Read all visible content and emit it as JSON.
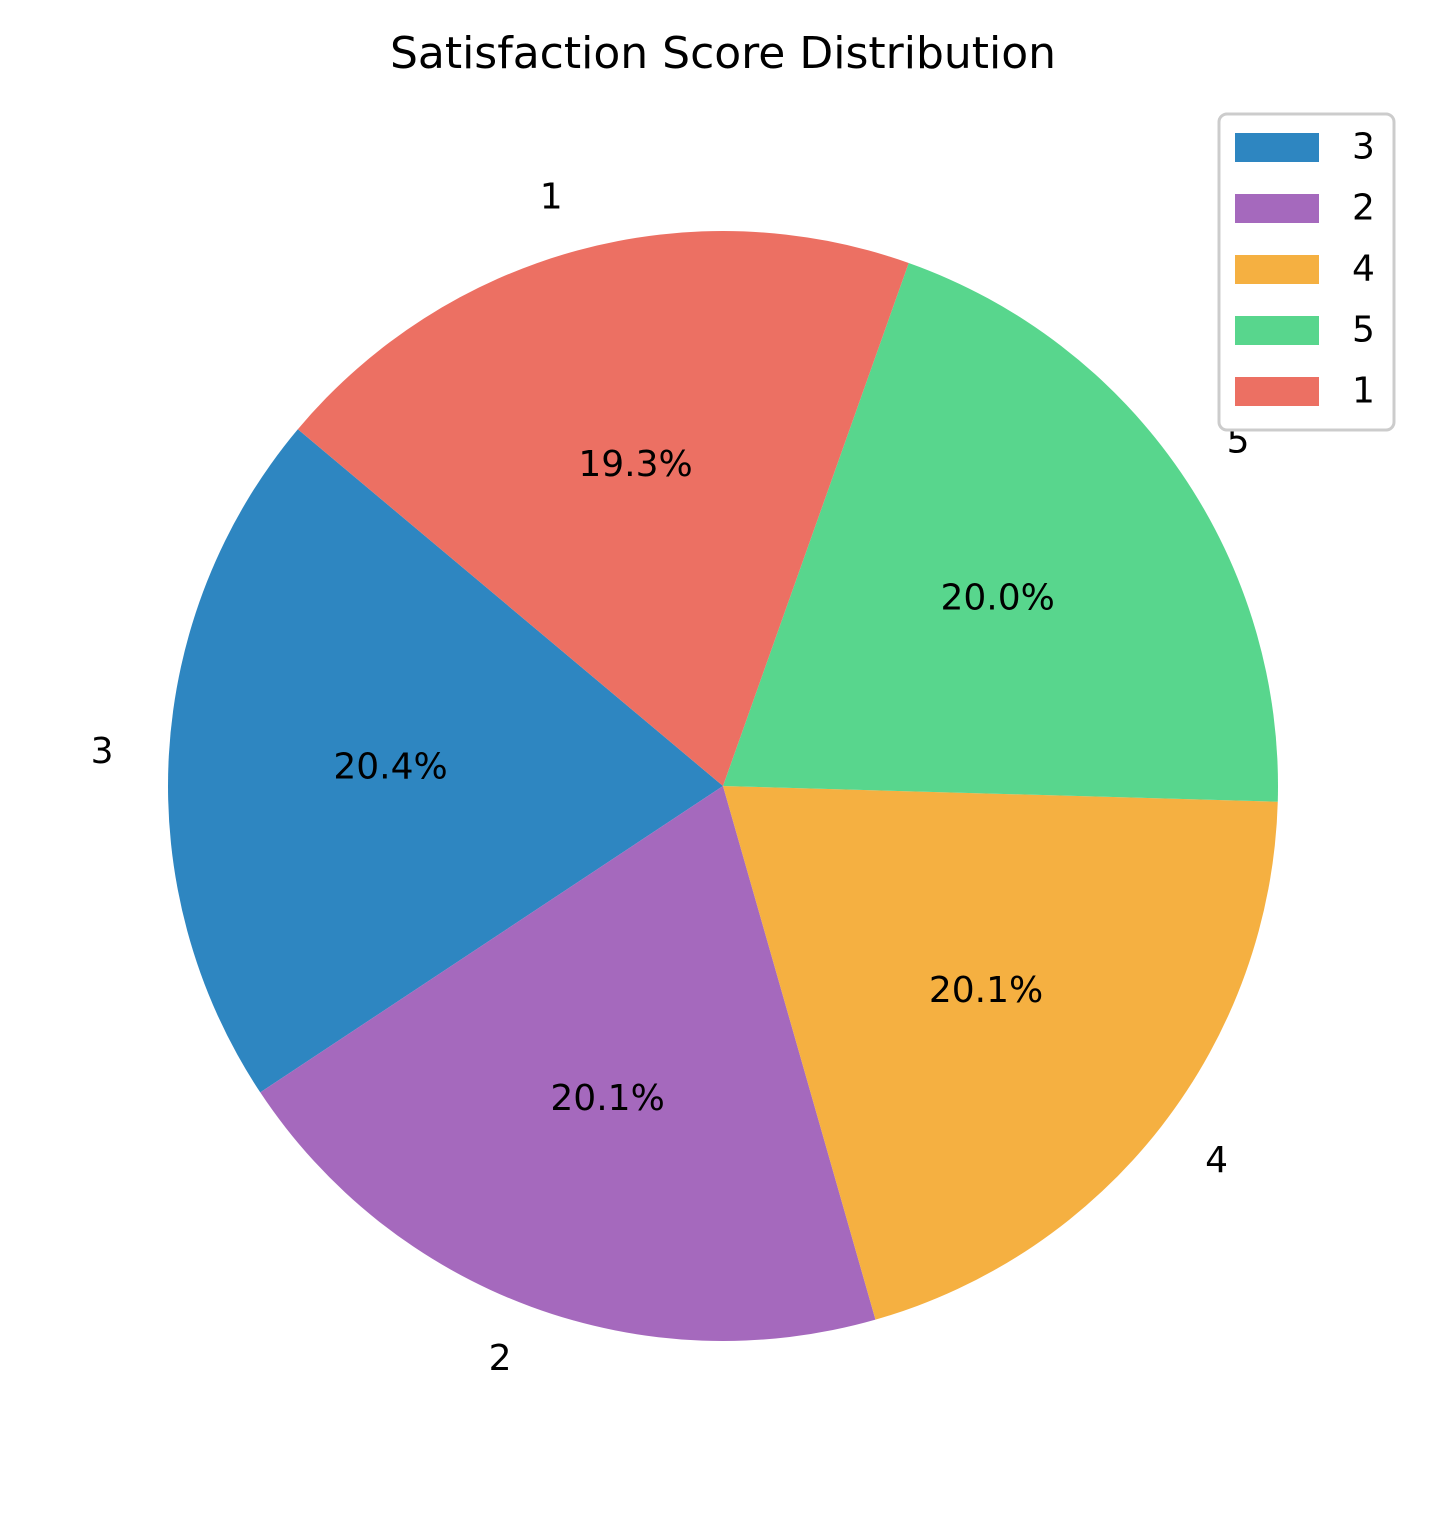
{
  "chart_data": {
    "type": "pie",
    "title": "Satisfaction Score Distribution",
    "start_angle_deg": 140,
    "direction": "counterclockwise",
    "slices": [
      {
        "label": "3",
        "percent": 20.4,
        "percent_text": "20.4%",
        "color": "#2E86C1"
      },
      {
        "label": "2",
        "percent": 20.1,
        "percent_text": "20.1%",
        "color": "#A569BD"
      },
      {
        "label": "4",
        "percent": 20.1,
        "percent_text": "20.1%",
        "color": "#F5B041"
      },
      {
        "label": "5",
        "percent": 20.0,
        "percent_text": "20.0%",
        "color": "#58D68D"
      },
      {
        "label": "1",
        "percent": 19.3,
        "percent_text": "19.3%",
        "color": "#EC7063"
      }
    ],
    "legend": {
      "placement": "top-right",
      "entries": [
        "3",
        "2",
        "4",
        "5",
        "1"
      ]
    }
  }
}
